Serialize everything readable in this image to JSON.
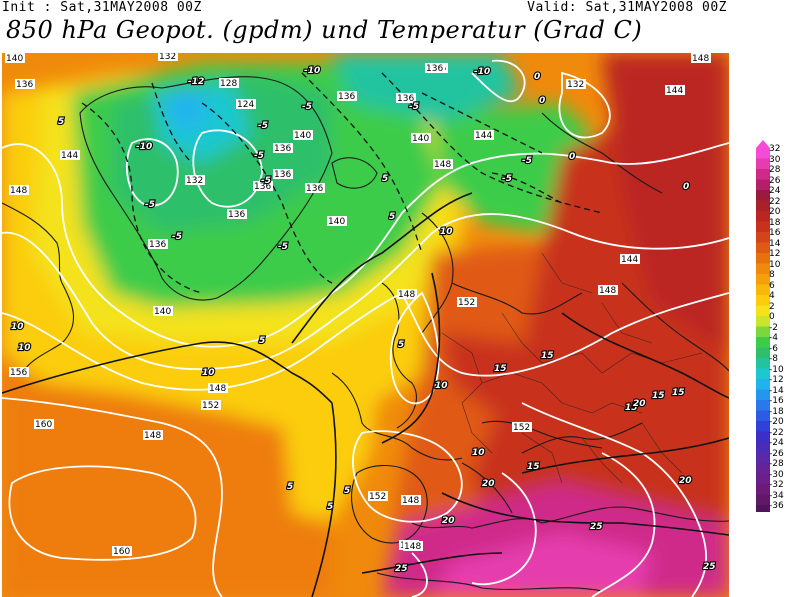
{
  "header": {
    "init": "Init : Sat,31MAY2008 00Z",
    "valid": "Valid: Sat,31MAY2008 00Z",
    "title": "850 hPa Geopot. (gpdm) und Temperatur (Grad C)"
  },
  "colorbar": {
    "levels": [
      {
        "label": "32",
        "color": "#f54bd6"
      },
      {
        "label": "30",
        "color": "#e63cae"
      },
      {
        "label": "28",
        "color": "#cf2a8a"
      },
      {
        "label": "26",
        "color": "#b3206a"
      },
      {
        "label": "24",
        "color": "#9a1b3e"
      },
      {
        "label": "22",
        "color": "#a8202a"
      },
      {
        "label": "20",
        "color": "#bb2622"
      },
      {
        "label": "18",
        "color": "#c8321d"
      },
      {
        "label": "16",
        "color": "#d4441a"
      },
      {
        "label": "14",
        "color": "#e05a14"
      },
      {
        "label": "12",
        "color": "#e8700f"
      },
      {
        "label": "10",
        "color": "#f08a0c"
      },
      {
        "label": "8",
        "color": "#f5a00a"
      },
      {
        "label": "6",
        "color": "#f8b70a"
      },
      {
        "label": "4",
        "color": "#fbcd0d"
      },
      {
        "label": "2",
        "color": "#f4e21b"
      },
      {
        "label": "0",
        "color": "#c9e52c"
      },
      {
        "label": "-2",
        "color": "#7ad83d"
      },
      {
        "label": "-4",
        "color": "#3ccc49"
      },
      {
        "label": "-6",
        "color": "#2fbf6a"
      },
      {
        "label": "-8",
        "color": "#22c4a0"
      },
      {
        "label": "-10",
        "color": "#1cc8d0"
      },
      {
        "label": "-12",
        "color": "#20b4ee"
      },
      {
        "label": "-14",
        "color": "#2496ee"
      },
      {
        "label": "-16",
        "color": "#2a78ea"
      },
      {
        "label": "-18",
        "color": "#2d5ce4"
      },
      {
        "label": "-20",
        "color": "#3040d8"
      },
      {
        "label": "-22",
        "color": "#3a30c8"
      },
      {
        "label": "-24",
        "color": "#4a2cb8"
      },
      {
        "label": "-26",
        "color": "#5a28a8"
      },
      {
        "label": "-28",
        "color": "#642498"
      },
      {
        "label": "-30",
        "color": "#6a2088"
      },
      {
        "label": "-32",
        "color": "#6a1c78"
      },
      {
        "label": "-34",
        "color": "#601868"
      },
      {
        "label": "-36",
        "color": "#501458"
      }
    ]
  },
  "map": {
    "geopotential_labels": [
      "140",
      "136",
      "132",
      "128",
      "124",
      "136",
      "136",
      "136",
      "132",
      "144",
      "148",
      "148",
      "132",
      "136",
      "140",
      "136",
      "140",
      "136",
      "136",
      "140",
      "144",
      "144",
      "148",
      "148",
      "144",
      "148",
      "152",
      "148",
      "152",
      "156",
      "160",
      "148",
      "152",
      "148",
      "160",
      "152",
      "148",
      "148",
      "136",
      "140",
      "136",
      "136"
    ],
    "temperature_labels": [
      "-12",
      "-10",
      "-10",
      "-10",
      "-5",
      "-5",
      "-5",
      "-5",
      "-5",
      "-5",
      "-5",
      "-5",
      "-5",
      "-5",
      "0",
      "0",
      "0",
      "0",
      "5",
      "5",
      "5",
      "5",
      "5",
      "5",
      "5",
      "5",
      "10",
      "10",
      "10",
      "10",
      "10",
      "10",
      "15",
      "15",
      "15",
      "15",
      "15",
      "15",
      "20",
      "20",
      "20",
      "20",
      "25",
      "25",
      "25"
    ]
  }
}
